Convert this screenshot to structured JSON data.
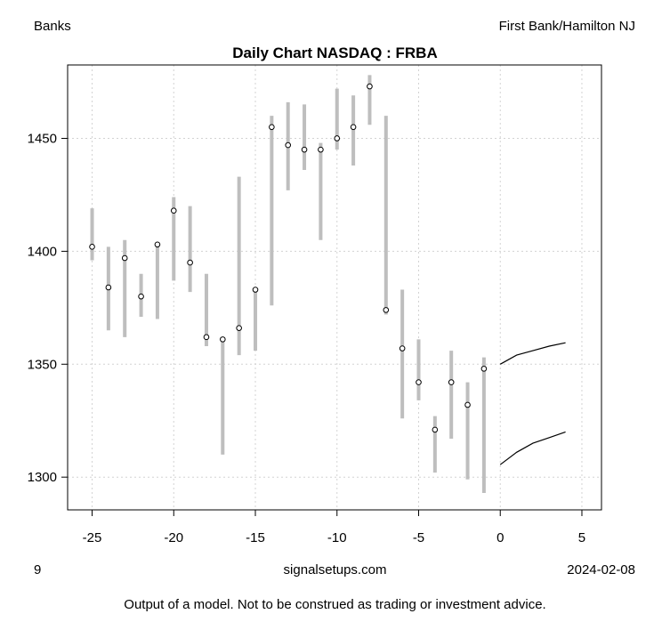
{
  "header": {
    "left": "Banks",
    "right": "First Bank/Hamilton NJ"
  },
  "footer": {
    "left": "9",
    "center": "signalsetups.com",
    "right": "2024-02-08",
    "disclaimer": "Output of a model. Not to be construed as trading or investment advice."
  },
  "chart_data": {
    "type": "candlestick-range",
    "title": "Daily Chart NASDAQ : FRBA",
    "xlabel": "",
    "ylabel": "",
    "xlim": [
      -26.5,
      6.2
    ],
    "ylim": [
      1285.5,
      1482.5
    ],
    "x_ticks": [
      -25,
      -20,
      -15,
      -10,
      -5,
      0,
      5
    ],
    "y_ticks": [
      1300,
      1350,
      1400,
      1450
    ],
    "grid": true,
    "bar_color": "#bebebe",
    "points": [
      {
        "x": -25,
        "close": 1402,
        "low": 1396,
        "high": 1419
      },
      {
        "x": -24,
        "close": 1384,
        "low": 1365,
        "high": 1402
      },
      {
        "x": -23,
        "close": 1397,
        "low": 1362,
        "high": 1405
      },
      {
        "x": -22,
        "close": 1380,
        "low": 1371,
        "high": 1390
      },
      {
        "x": -21,
        "close": 1403,
        "low": 1370,
        "high": 1404
      },
      {
        "x": -20,
        "close": 1418,
        "low": 1387,
        "high": 1424
      },
      {
        "x": -19,
        "close": 1395,
        "low": 1382,
        "high": 1420
      },
      {
        "x": -18,
        "close": 1362,
        "low": 1358,
        "high": 1390
      },
      {
        "x": -17,
        "close": 1361,
        "low": 1310,
        "high": 1362
      },
      {
        "x": -16,
        "close": 1366,
        "low": 1354,
        "high": 1433
      },
      {
        "x": -15,
        "close": 1383,
        "low": 1356,
        "high": 1384
      },
      {
        "x": -14,
        "close": 1455,
        "low": 1376,
        "high": 1460
      },
      {
        "x": -13,
        "close": 1447,
        "low": 1427,
        "high": 1466
      },
      {
        "x": -12,
        "close": 1445,
        "low": 1436,
        "high": 1465
      },
      {
        "x": -11,
        "close": 1445,
        "low": 1405,
        "high": 1448
      },
      {
        "x": -10,
        "close": 1450,
        "low": 1445,
        "high": 1472
      },
      {
        "x": -9,
        "close": 1455,
        "low": 1438,
        "high": 1469
      },
      {
        "x": -8,
        "close": 1473,
        "low": 1456,
        "high": 1478
      },
      {
        "x": -7,
        "close": 1374,
        "low": 1372,
        "high": 1460
      },
      {
        "x": -6,
        "close": 1357,
        "low": 1326,
        "high": 1383
      },
      {
        "x": -5,
        "close": 1342,
        "low": 1334,
        "high": 1361
      },
      {
        "x": -4,
        "close": 1321,
        "low": 1302,
        "high": 1327
      },
      {
        "x": -3,
        "close": 1342,
        "low": 1317,
        "high": 1356
      },
      {
        "x": -2,
        "close": 1332,
        "low": 1299,
        "high": 1342
      },
      {
        "x": -1,
        "close": 1348,
        "low": 1293,
        "high": 1353
      }
    ],
    "forecast_upper": {
      "x": [
        0,
        1,
        2,
        3,
        4
      ],
      "y": [
        1350,
        1354,
        1356,
        1358,
        1359.5
      ]
    },
    "forecast_lower": {
      "x": [
        0,
        1,
        2,
        3,
        4
      ],
      "y": [
        1305.5,
        1311,
        1315,
        1317.5,
        1320
      ]
    }
  }
}
